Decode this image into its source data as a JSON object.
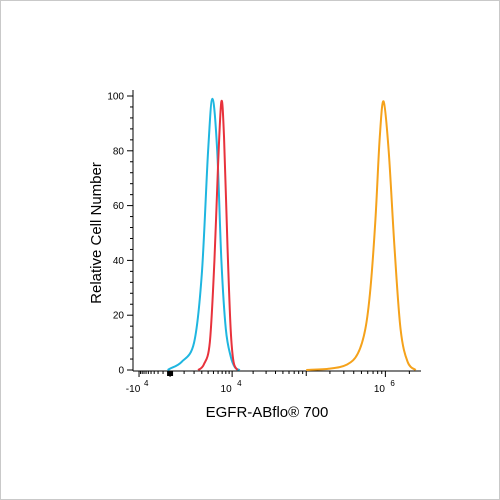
{
  "chart_data": {
    "type": "line",
    "title": "",
    "xlabel": "EGFR-ABflo® 700",
    "ylabel": "Relative Cell Number",
    "ylim": [
      0,
      100
    ],
    "y_ticks": [
      0,
      20,
      40,
      60,
      80,
      100
    ],
    "x_axis": {
      "scale": "biexponential",
      "major_ticks": [
        {
          "value": -10000,
          "label_base": "-10",
          "label_exp": "4"
        },
        {
          "value": 0,
          "label_base": "",
          "label_exp": ""
        },
        {
          "value": 10000,
          "label_base": "10",
          "label_exp": "4"
        },
        {
          "value": 1000000,
          "label_base": "10",
          "label_exp": "6"
        }
      ]
    },
    "grid": false,
    "legend": "none",
    "series": [
      {
        "color": "#1fb6e0",
        "x": [
          -300,
          0,
          800,
          2000,
          3000,
          4000,
          4800,
          5800,
          6800,
          8000,
          9500,
          11000,
          13000
        ],
        "y": [
          0,
          0.5,
          3,
          10,
          35,
          80,
          99,
          80,
          40,
          15,
          5,
          1,
          0
        ]
      },
      {
        "color": "#e8323c",
        "x": [
          2500,
          3300,
          4300,
          5200,
          6000,
          6800,
          7500,
          8500,
          9500,
          10500,
          12000
        ],
        "y": [
          0,
          2,
          10,
          40,
          75,
          98,
          85,
          45,
          15,
          3,
          0
        ]
      },
      {
        "color": "#f5a21b",
        "x": [
          100000,
          200000,
          330000,
          450000,
          560000,
          650000,
          750000,
          850000,
          950000,
          1100000,
          1300000,
          1550000,
          1900000,
          2400000
        ],
        "y": [
          0,
          0.5,
          2,
          6,
          15,
          30,
          55,
          85,
          98,
          80,
          45,
          15,
          3,
          0
        ]
      }
    ]
  }
}
